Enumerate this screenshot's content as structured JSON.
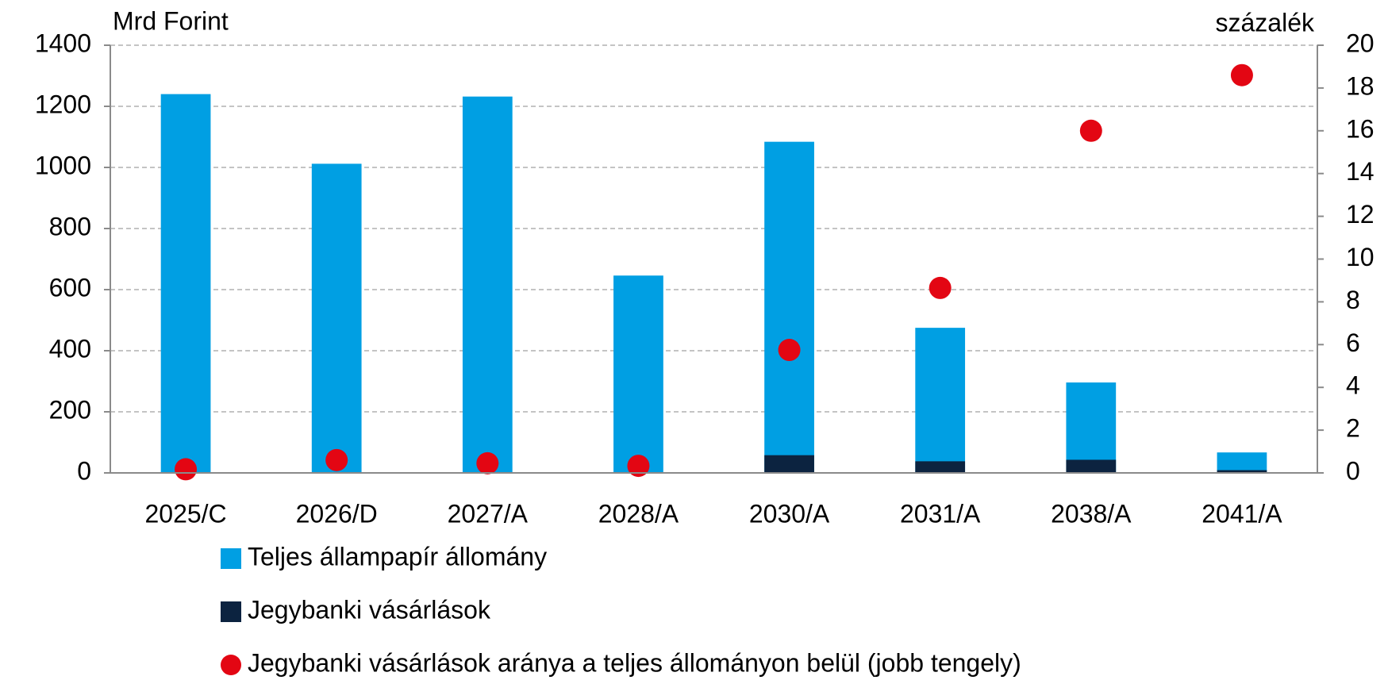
{
  "chart_data": {
    "type": "bar",
    "y_label": "Mrd Forint",
    "y2_label": "százalék",
    "categories": [
      "2025/C",
      "2026/D",
      "2027/A",
      "2028/A",
      "2030/A",
      "2031/A",
      "2038/A",
      "2041/A"
    ],
    "series": [
      {
        "name": "Teljes állampapír állomány",
        "color": "#009fe3",
        "values": [
          1240,
          1012,
          1232,
          646,
          1084,
          475,
          296,
          67
        ]
      },
      {
        "name": "Jegybanki vásárlások",
        "color": "#0c2340",
        "values": [
          0,
          0,
          0,
          0,
          58,
          38,
          43,
          9
        ]
      },
      {
        "name": "Jegybanki vásárlások aránya a teljes állományon belül (jobb tengely)",
        "color": "#e30613",
        "axis": "y2",
        "values": [
          0.17,
          0.6,
          0.45,
          0.33,
          5.75,
          8.65,
          16.0,
          18.6
        ]
      }
    ],
    "ylim": [
      0,
      1400
    ],
    "yticks": [
      0,
      200,
      400,
      600,
      800,
      1000,
      1200,
      1400
    ],
    "y2lim": [
      0,
      20
    ],
    "y2ticks": [
      0,
      2,
      4,
      6,
      8,
      10,
      12,
      14,
      16,
      18,
      20
    ],
    "grid": true
  }
}
